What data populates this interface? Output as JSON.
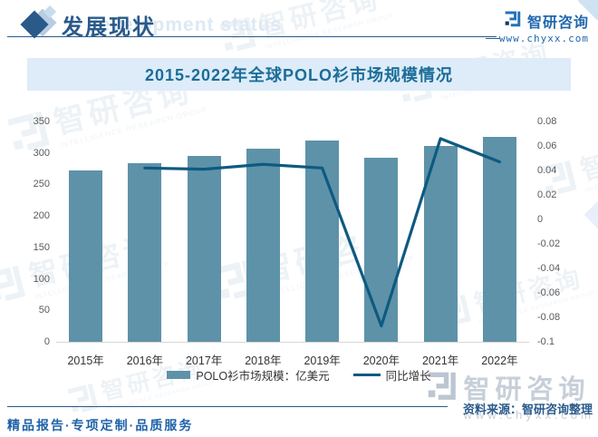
{
  "header": {
    "title": "发展现状",
    "ghost_subtitle": "development status",
    "brand_name": "智研咨询",
    "brand_url": "www.chyxx.com"
  },
  "chart": {
    "title": "2015-2022年全球POLO衫市场规模情况"
  },
  "chart_data": {
    "type": "combo-bar-line",
    "title": "2015-2022年全球POLO衫市场规模情况",
    "categories": [
      "2015年",
      "2016年",
      "2017年",
      "2018年",
      "2019年",
      "2020年",
      "2021年",
      "2022年"
    ],
    "series": [
      {
        "name": "POLO衫市场规模：亿美元",
        "type": "bar",
        "axis": "left",
        "values": [
          272,
          284,
          295,
          307,
          320,
          293,
          311,
          326
        ]
      },
      {
        "name": "同比增长",
        "type": "line",
        "axis": "right",
        "values": [
          null,
          0.042,
          0.041,
          0.045,
          0.042,
          -0.087,
          0.066,
          0.047
        ]
      }
    ],
    "left_axis": {
      "min": 0,
      "max": 350,
      "step": 50
    },
    "right_axis": {
      "min": -0.1,
      "max": 0.08,
      "step": 0.02
    },
    "grid": false,
    "legend_position": "bottom"
  },
  "colors": {
    "bar": "#5e92a8",
    "line": "#0e5a80",
    "accent": "#2a5a8a",
    "logo_blue": "#2472b8",
    "logo_navy": "#163a66"
  },
  "watermark": {
    "brand": "智研咨询",
    "subtext": "INTELLIGENCE RESEARCH GROUP",
    "url": "www.chyxx.com"
  },
  "footer": {
    "source": "资料来源：智研咨询整理",
    "tagline": "精品报告·专项定制·品质服务"
  }
}
